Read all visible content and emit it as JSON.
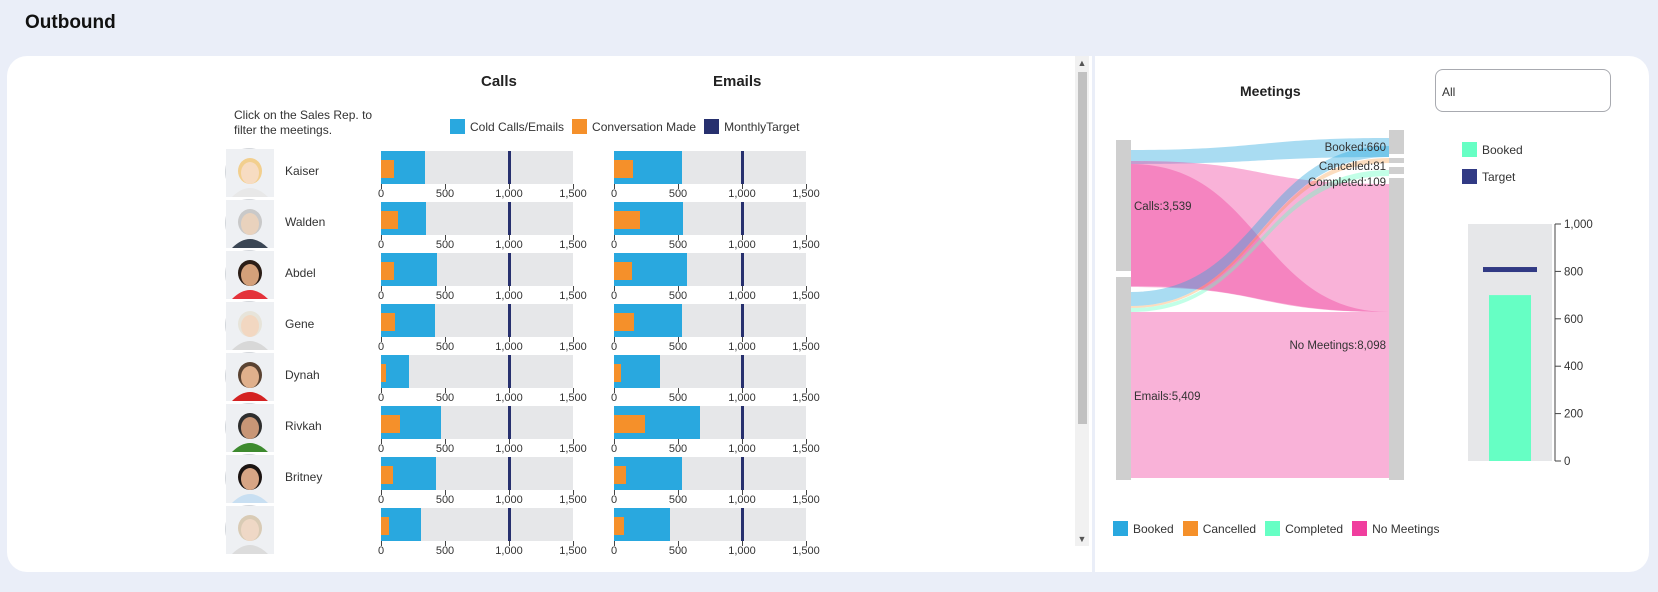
{
  "page": {
    "title": "Outbound"
  },
  "colors": {
    "cold": "#29a8df",
    "conversation": "#f5902a",
    "target": "#27306e",
    "booked": "#29a8df",
    "cancelled": "#f5902a",
    "completed": "#66ffc4",
    "no_meetings": "#f03e9e",
    "gauge_booked": "#66ffc4",
    "gauge_target": "#313a84"
  },
  "left": {
    "hint": "Click on the Sales Rep. to filter the meetings.",
    "calls_title": "Calls",
    "emails_title": "Emails",
    "legend": [
      {
        "label": "Cold Calls/Emails",
        "color": "#29a8df"
      },
      {
        "label": "Conversation Made",
        "color": "#f5902a"
      },
      {
        "label": "MonthlyTarget",
        "color": "#27306e"
      }
    ],
    "axis_ticks": [
      "0",
      "500",
      "1,000",
      "1,500"
    ],
    "axis_values": [
      0,
      500,
      1000,
      1500
    ],
    "axis_max": 1500,
    "monthly_target": 1000,
    "reps": [
      {
        "name": "Kaiser",
        "avatar": "person-photo-woman-blonde",
        "calls": 340,
        "calls_conv": 100,
        "emails": 530,
        "emails_conv": 150
      },
      {
        "name": "Walden",
        "avatar": "person-photo-man-gray",
        "calls": 355,
        "calls_conv": 130,
        "emails": 540,
        "emails_conv": 200
      },
      {
        "name": "Abdel",
        "avatar": "person-photo-man-dark",
        "calls": 440,
        "calls_conv": 105,
        "emails": 570,
        "emails_conv": 140
      },
      {
        "name": "Gene",
        "avatar": "person-photo-woman-gray",
        "calls": 420,
        "calls_conv": 110,
        "emails": 530,
        "emails_conv": 160
      },
      {
        "name": "Dynah",
        "avatar": "person-photo-man-beard",
        "calls": 220,
        "calls_conv": 40,
        "emails": 360,
        "emails_conv": 55
      },
      {
        "name": "Rivkah",
        "avatar": "person-photo-man-green",
        "calls": 470,
        "calls_conv": 150,
        "emails": 670,
        "emails_conv": 240
      },
      {
        "name": "Britney",
        "avatar": "person-photo-woman-dark",
        "calls": 430,
        "calls_conv": 90,
        "emails": 530,
        "emails_conv": 95
      },
      {
        "name": "",
        "avatar": "person-photo-partial",
        "calls": 310,
        "calls_conv": 60,
        "emails": 440,
        "emails_conv": 80
      }
    ]
  },
  "meetings": {
    "title": "Meetings",
    "filter_value": "All",
    "sources": [
      {
        "label": "Calls:3,539",
        "value": 3539
      },
      {
        "label": "Emails:5,409",
        "value": 5409
      }
    ],
    "targets": [
      {
        "label": "Booked:660",
        "value": 660
      },
      {
        "label": "Cancelled:81",
        "value": 81
      },
      {
        "label": "Completed:109",
        "value": 109
      },
      {
        "label": "No Meetings:8,098",
        "value": 8098
      }
    ],
    "legend": [
      {
        "label": "Booked",
        "color": "#29a8df"
      },
      {
        "label": "Cancelled",
        "color": "#f5902a"
      },
      {
        "label": "Completed",
        "color": "#66ffc4"
      },
      {
        "label": "No Meetings",
        "color": "#f03e9e"
      }
    ]
  },
  "gauge": {
    "legend": [
      {
        "label": "Booked",
        "color": "#66ffc4"
      },
      {
        "label": "Target",
        "color": "#313a84"
      }
    ],
    "booked_value": 700,
    "target_value": 810,
    "ticks": [
      "0",
      "200",
      "400",
      "600",
      "800",
      "1,000"
    ],
    "tick_values": [
      0,
      200,
      400,
      600,
      800,
      1000
    ],
    "max": 1000
  }
}
